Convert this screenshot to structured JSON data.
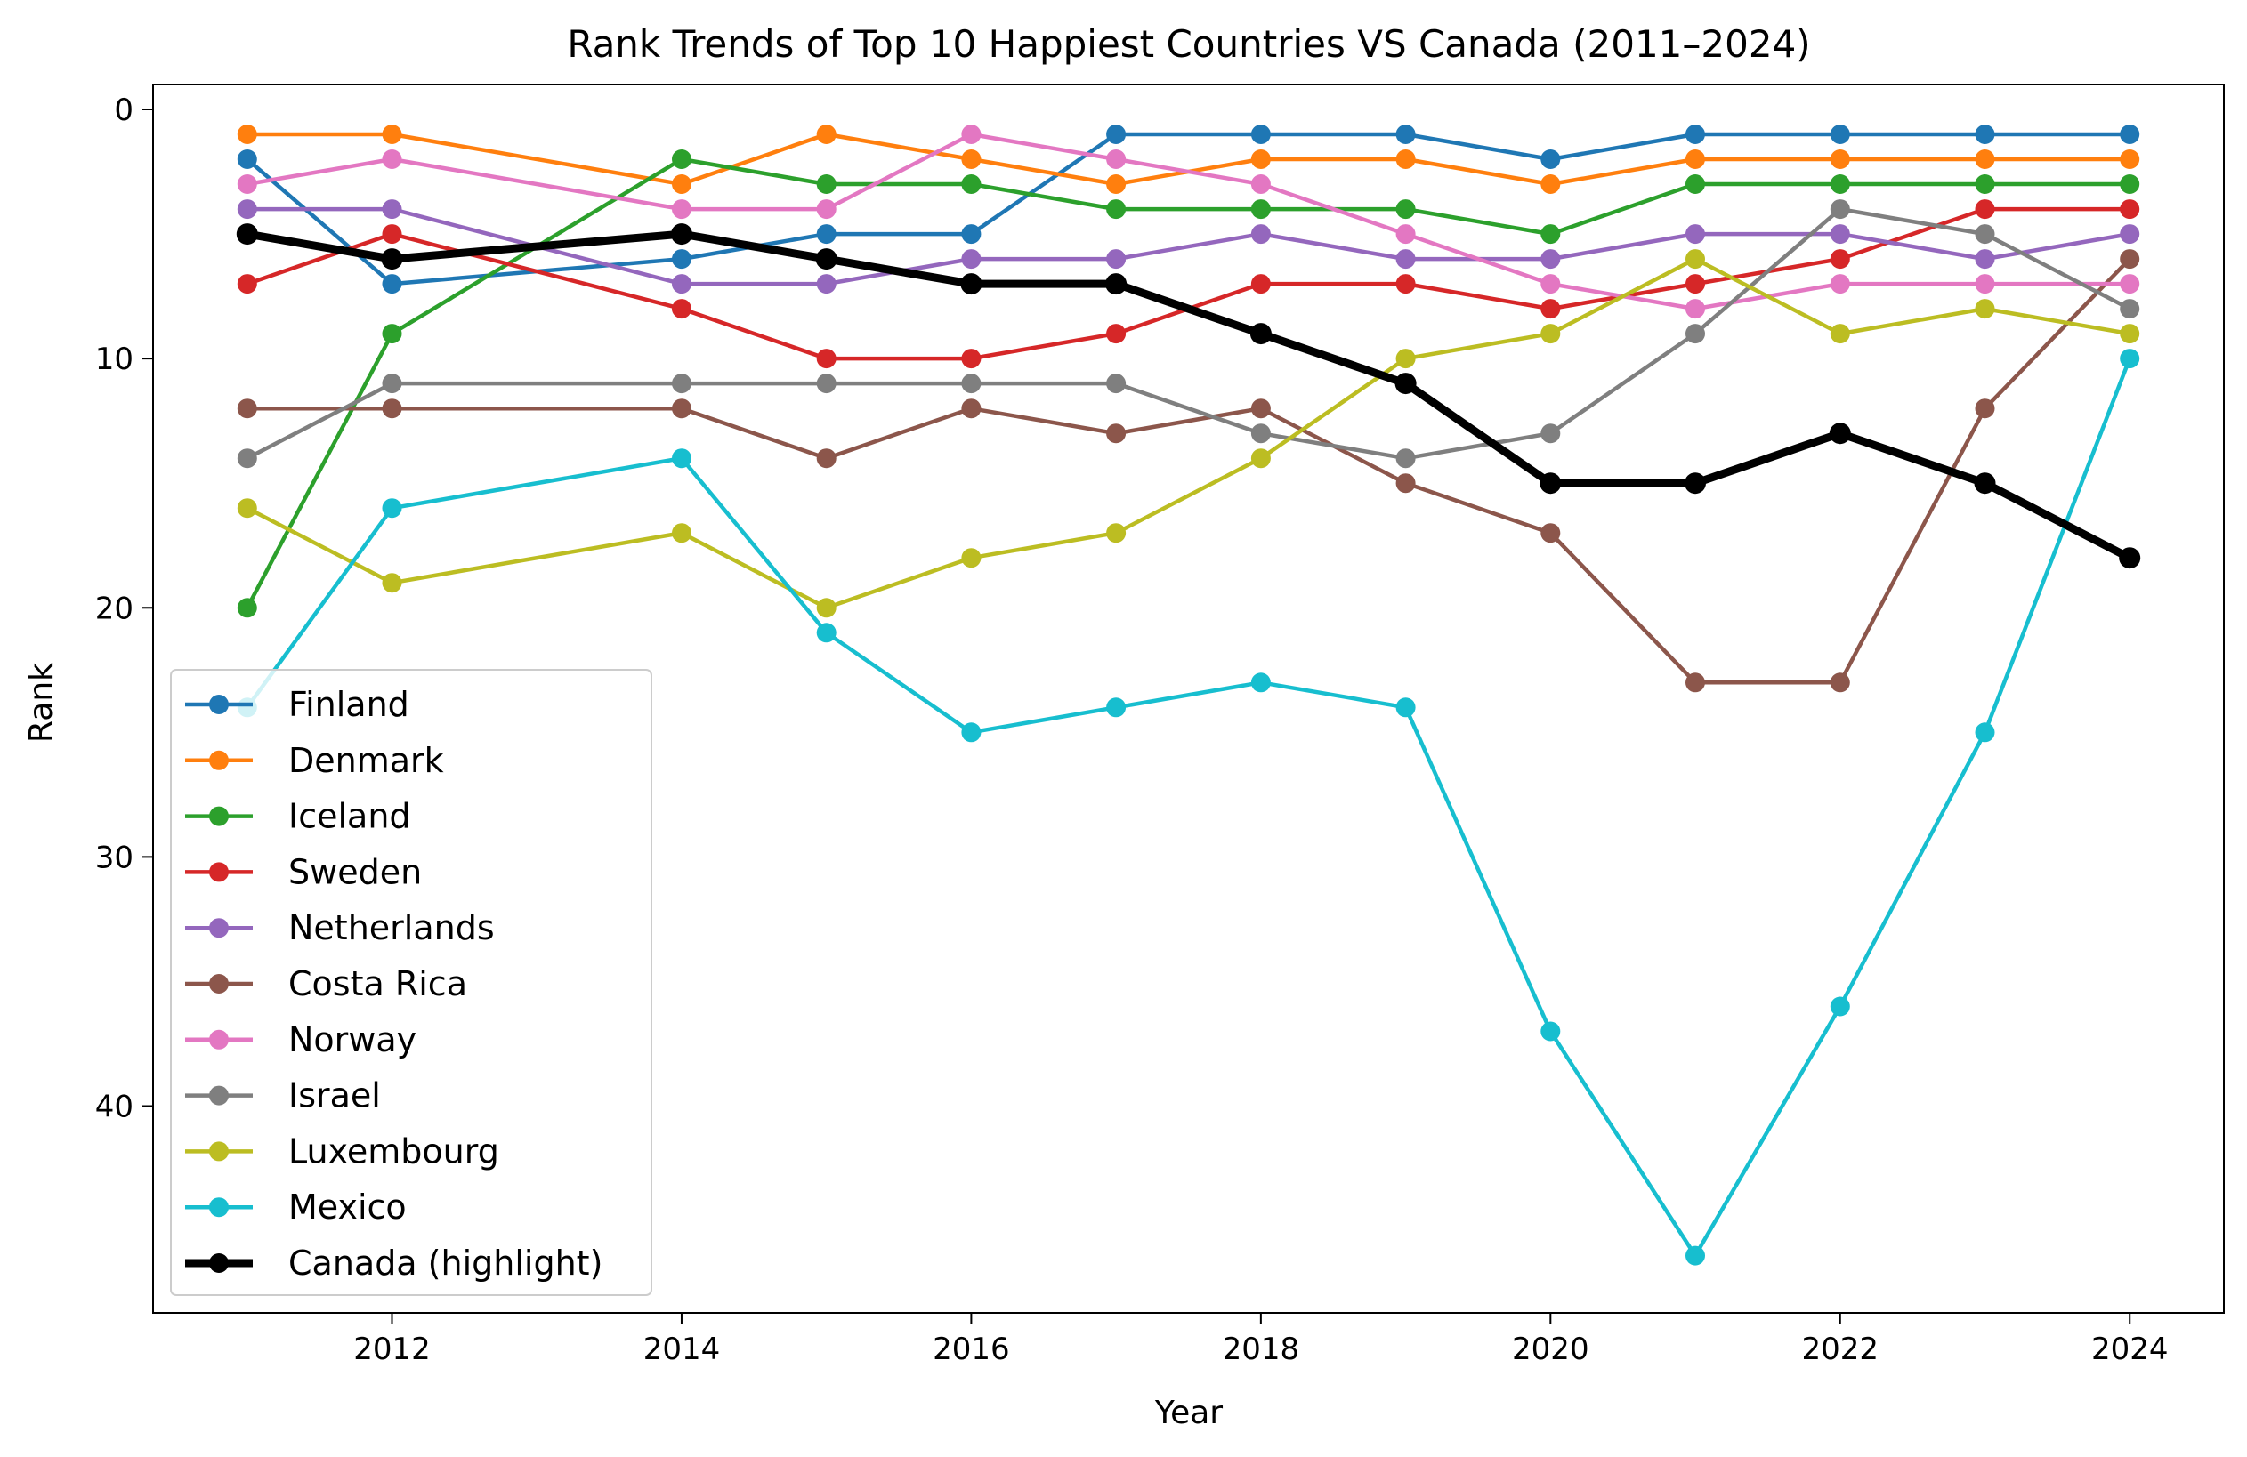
{
  "chart_data": {
    "type": "line",
    "title": "Rank Trends of Top 10 Happiest Countries VS Canada (2011–2024)",
    "xlabel": "Year",
    "ylabel": "Rank",
    "xlim": [
      2010.35,
      2024.65
    ],
    "ylim": [
      48.3,
      -1.0
    ],
    "y_inverted": true,
    "grid": false,
    "legend_position": "lower-left",
    "x_ticks": [
      2012,
      2014,
      2016,
      2018,
      2020,
      2022,
      2024
    ],
    "y_ticks": [
      0,
      10,
      20,
      30,
      40
    ],
    "x": [
      2011,
      2012,
      2014,
      2015,
      2016,
      2017,
      2018,
      2019,
      2020,
      2021,
      2022,
      2023,
      2024
    ],
    "series": [
      {
        "name": "Finland",
        "color": "#1f77b4",
        "values": [
          2,
          7,
          6,
          5,
          5,
          1,
          1,
          1,
          2,
          1,
          1,
          1,
          1
        ]
      },
      {
        "name": "Denmark",
        "color": "#ff7f0e",
        "values": [
          1,
          1,
          3,
          1,
          2,
          3,
          2,
          2,
          3,
          2,
          2,
          2,
          2
        ]
      },
      {
        "name": "Iceland",
        "color": "#2ca02c",
        "values": [
          20,
          9,
          2,
          3,
          3,
          4,
          4,
          4,
          5,
          3,
          3,
          3,
          3
        ]
      },
      {
        "name": "Sweden",
        "color": "#d62728",
        "values": [
          7,
          5,
          8,
          10,
          10,
          9,
          7,
          7,
          8,
          7,
          6,
          4,
          4
        ]
      },
      {
        "name": "Netherlands",
        "color": "#9467bd",
        "values": [
          4,
          4,
          7,
          7,
          6,
          6,
          5,
          6,
          6,
          5,
          5,
          6,
          5
        ]
      },
      {
        "name": "Costa Rica",
        "color": "#8c564b",
        "values": [
          12,
          12,
          12,
          14,
          12,
          13,
          12,
          15,
          17,
          23,
          23,
          12,
          6
        ]
      },
      {
        "name": "Norway",
        "color": "#e377c2",
        "values": [
          3,
          2,
          4,
          4,
          1,
          2,
          3,
          5,
          7,
          8,
          7,
          7,
          7
        ]
      },
      {
        "name": "Israel",
        "color": "#7f7f7f",
        "values": [
          14,
          11,
          11,
          11,
          11,
          11,
          13,
          14,
          13,
          9,
          4,
          5,
          8
        ]
      },
      {
        "name": "Luxembourg",
        "color": "#bcbd22",
        "values": [
          16,
          19,
          17,
          20,
          18,
          17,
          14,
          10,
          9,
          6,
          9,
          8,
          9
        ]
      },
      {
        "name": "Mexico",
        "color": "#17becf",
        "values": [
          24,
          16,
          14,
          21,
          25,
          24,
          23,
          24,
          37,
          46,
          36,
          25,
          10
        ]
      },
      {
        "name": "Canada (highlight)",
        "color": "#000000",
        "highlight": true,
        "values": [
          5,
          6,
          5,
          6,
          7,
          7,
          9,
          11,
          15,
          15,
          13,
          15,
          18
        ]
      }
    ]
  }
}
